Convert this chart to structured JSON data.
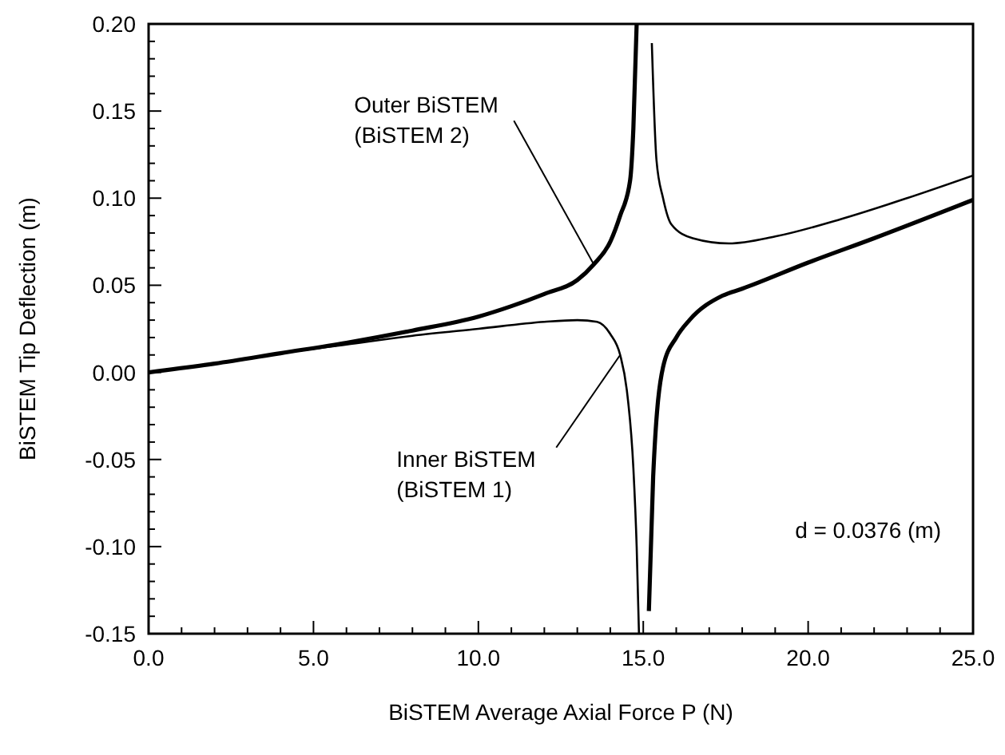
{
  "chart_data": {
    "type": "line",
    "xlabel": "BiSTEM Average Axial Force   P  (N)",
    "ylabel": "BiSTEM Tip Deflection  (m)",
    "xlim": [
      0,
      25
    ],
    "ylim": [
      -0.15,
      0.2
    ],
    "xticks": [
      {
        "value": 0,
        "label": "0.0"
      },
      {
        "value": 5,
        "label": "5.0"
      },
      {
        "value": 10,
        "label": "10.0"
      },
      {
        "value": 15,
        "label": "15.0"
      },
      {
        "value": 20,
        "label": "20.0"
      },
      {
        "value": 25,
        "label": "25.0"
      }
    ],
    "yticks": [
      {
        "value": -0.15,
        "label": "-0.15"
      },
      {
        "value": -0.1,
        "label": "-0.10"
      },
      {
        "value": -0.05,
        "label": "-0.05"
      },
      {
        "value": 0,
        "label": "0.00"
      },
      {
        "value": 0.05,
        "label": "0.05"
      },
      {
        "value": 0.1,
        "label": "0.10"
      },
      {
        "value": 0.15,
        "label": "0.15"
      },
      {
        "value": 0.2,
        "label": "0.20"
      }
    ],
    "grid": false,
    "line_style": "solid",
    "series": [
      {
        "color": "#000000",
        "x": [
          0,
          2,
          4,
          6,
          8,
          10,
          11,
          12,
          13,
          13.5,
          14,
          14.3,
          14.6,
          14.7,
          14.8,
          null,
          15.17,
          15.3,
          15.6,
          16,
          16.4,
          17.4,
          18,
          20,
          22,
          25
        ],
        "values": [
          0,
          0.005,
          0.011,
          0.017,
          0.024,
          0.032,
          0.038,
          0.045,
          0.053,
          0.062,
          0.075,
          0.09,
          0.11,
          0.14,
          0.2,
          null,
          -0.137,
          -0.06,
          0.003,
          0.02,
          0.03,
          0.044,
          0.048,
          0.063,
          0.077,
          0.099
        ]
      },
      {
        "color": "#000000",
        "x": [
          0,
          2,
          4,
          6,
          8,
          10,
          12,
          13,
          13.6,
          14,
          14.3,
          14.5,
          14.7,
          14.8,
          14.87,
          null,
          15.26,
          15.4,
          15.6,
          15.85,
          16.5,
          17.6,
          19,
          21,
          23,
          25
        ],
        "values": [
          0,
          0.005,
          0.011,
          0.016,
          0.021,
          0.025,
          0.029,
          0.03,
          0.029,
          0.022,
          0.01,
          -0.01,
          -0.055,
          -0.1,
          -0.15,
          null,
          0.189,
          0.122,
          0.1,
          0.085,
          0.077,
          0.074,
          0.078,
          0.088,
          0.1,
          0.113
        ]
      }
    ],
    "annotations": [
      {
        "text": "Outer BiSTEM\n(BiSTEM 2)",
        "x": 13.5,
        "y": 0.062
      },
      {
        "text": "Inner BiSTEM\n(BiSTEM 1)",
        "x": 14.3,
        "y": 0.01
      },
      "d = 0.0376 (m)"
    ]
  }
}
